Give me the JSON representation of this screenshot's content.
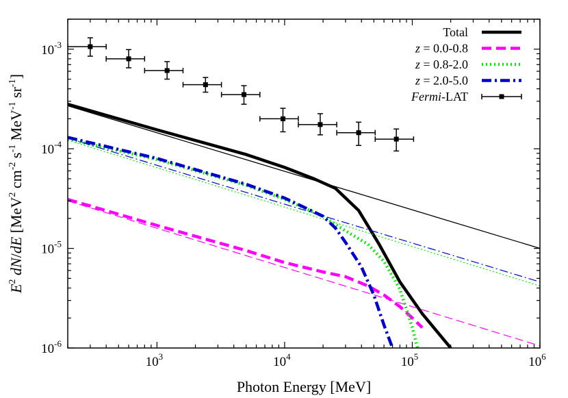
{
  "chart_data": {
    "type": "line",
    "x_scale": "log",
    "y_scale": "log",
    "xlim": [
      200,
      1000000
    ],
    "ylim": [
      1e-06,
      0.002
    ],
    "xlabel": "Photon Energy [MeV]",
    "ylabel": "E^2 dN/dE [MeV^2 cm^-2 s^-1 MeV^-1 sr^-1]",
    "grid": false,
    "legend_position": "top-right",
    "x_ticks": [
      {
        "base": "10",
        "exp": "3",
        "value": 1000
      },
      {
        "base": "10",
        "exp": "4",
        "value": 10000
      },
      {
        "base": "10",
        "exp": "5",
        "value": 100000
      },
      {
        "base": "10",
        "exp": "6",
        "value": 1000000
      }
    ],
    "y_ticks": [
      {
        "base": "10",
        "exp": "-6",
        "value": 1e-06
      },
      {
        "base": "10",
        "exp": "-5",
        "value": 1e-05
      },
      {
        "base": "10",
        "exp": "-4",
        "value": 0.0001
      },
      {
        "base": "10",
        "exp": "-3",
        "value": 0.001
      }
    ],
    "series": [
      {
        "name": "Total",
        "color": "#000000",
        "width": 4.5,
        "dash": "",
        "x": [
          200,
          1000,
          5000,
          10000,
          17000,
          25000,
          38000,
          55000,
          80000,
          120000,
          200000
        ],
        "y": [
          0.00028,
          0.000155,
          8.75e-05,
          6.5e-05,
          5e-05,
          4e-05,
          2.4e-05,
          1.1e-05,
          4.6e-06,
          2.2e-06,
          1e-06
        ]
      },
      {
        "name": "",
        "color": "#000000",
        "width": 1.3,
        "dash": "",
        "x": [
          200,
          1000000
        ],
        "y": [
          0.00027,
          1e-05
        ]
      },
      {
        "name": "z = 0.0-0.8",
        "color": "#ff00ff",
        "width": 4.5,
        "dash": "14,7",
        "x": [
          200,
          1000,
          5000,
          10000,
          20000,
          30000,
          45000,
          60000,
          80000,
          100000,
          120000
        ],
        "y": [
          3.1e-05,
          1.7e-05,
          9.5e-06,
          7.2e-06,
          5.8e-06,
          5.2e-06,
          4.2e-06,
          3.4e-06,
          2.6e-06,
          2e-06,
          1.6e-06
        ]
      },
      {
        "name": "",
        "color": "#ff00ff",
        "width": 1.2,
        "dash": "12,6",
        "x": [
          200,
          1000000
        ],
        "y": [
          3e-05,
          1.05e-06
        ]
      },
      {
        "name": "z = 0.8-2.0",
        "color": "#00ee00",
        "width": 4.5,
        "dash": "2,4",
        "x": [
          200,
          1000,
          5000,
          10000,
          20000,
          30000,
          45000,
          60000,
          80000,
          100000,
          110000
        ],
        "y": [
          0.000125,
          7.8e-05,
          4.3e-05,
          3.1e-05,
          2.1e-05,
          1.5e-05,
          1.1e-05,
          7.4e-06,
          3.9e-06,
          1.6e-06,
          1e-06
        ]
      },
      {
        "name": "",
        "color": "#00ee00",
        "width": 1.2,
        "dash": "2,3",
        "x": [
          200,
          1000000
        ],
        "y": [
          0.000122,
          4.2e-06
        ]
      },
      {
        "name": "z = 2.0-5.0",
        "color": "#0000cc",
        "width": 4.5,
        "dash": "14,5,3,5",
        "x": [
          200,
          1000,
          5000,
          10000,
          20000,
          25000,
          30000,
          40000,
          50000,
          60000,
          70000
        ],
        "y": [
          0.00013,
          8e-05,
          4.4e-05,
          3.2e-05,
          2.1e-05,
          1.6e-05,
          1.15e-05,
          6.5e-06,
          3.4e-06,
          1.7e-06,
          1e-06
        ]
      },
      {
        "name": "",
        "color": "#0000cc",
        "width": 1.2,
        "dash": "12,4,2,4",
        "x": [
          200,
          1000000
        ],
        "y": [
          0.000128,
          4.6e-06
        ]
      }
    ],
    "fermi_lat": {
      "name": "Fermi-LAT",
      "color": "#000000",
      "points": [
        {
          "x": 300,
          "y": 0.00106,
          "xlo": 200,
          "xhi": 400,
          "ylo": 0.00085,
          "yhi": 0.0013
        },
        {
          "x": 600,
          "y": 0.0008,
          "xlo": 400,
          "xhi": 800,
          "ylo": 0.00065,
          "yhi": 0.00099
        },
        {
          "x": 1200,
          "y": 0.00061,
          "xlo": 800,
          "xhi": 1600,
          "ylo": 0.0005,
          "yhi": 0.00075
        },
        {
          "x": 2400,
          "y": 0.00044,
          "xlo": 1600,
          "xhi": 3200,
          "ylo": 0.00037,
          "yhi": 0.00052
        },
        {
          "x": 4800,
          "y": 0.00035,
          "xlo": 3200,
          "xhi": 6400,
          "ylo": 0.00028,
          "yhi": 0.00043
        },
        {
          "x": 9700,
          "y": 0.0002,
          "xlo": 6400,
          "xhi": 12800,
          "ylo": 0.000148,
          "yhi": 0.000255
        },
        {
          "x": 19000,
          "y": 0.000175,
          "xlo": 12800,
          "xhi": 25600,
          "ylo": 0.000138,
          "yhi": 0.000225
        },
        {
          "x": 38000,
          "y": 0.000145,
          "xlo": 25600,
          "xhi": 51200,
          "ylo": 0.000108,
          "yhi": 0.000185
        },
        {
          "x": 75000,
          "y": 0.000125,
          "xlo": 51200,
          "xhi": 102400,
          "ylo": 9.5e-05,
          "yhi": 0.000158
        }
      ]
    },
    "legend": [
      {
        "prefix": "",
        "label": "Total",
        "color": "#000000",
        "dash": "",
        "width": 4.5,
        "marker": false
      },
      {
        "prefix": "z",
        "label": " = 0.0-0.8",
        "color": "#ff00ff",
        "dash": "14,7",
        "width": 4.5,
        "marker": false
      },
      {
        "prefix": "z",
        "label": " = 0.8-2.0",
        "color": "#00ee00",
        "dash": "2,4",
        "width": 4.5,
        "marker": false
      },
      {
        "prefix": "z",
        "label": " = 2.0-5.0",
        "color": "#0000cc",
        "dash": "14,5,3,5",
        "width": 4.5,
        "marker": false
      },
      {
        "prefix": "Fermi",
        "label": "-LAT",
        "color": "#000000",
        "dash": "",
        "width": 1.5,
        "marker": true
      }
    ]
  }
}
